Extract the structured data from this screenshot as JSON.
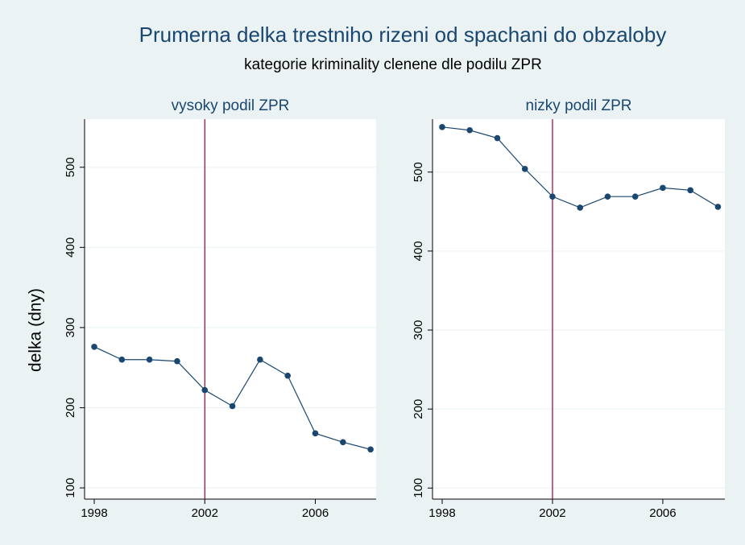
{
  "title": "Prumerna delka trestniho rizeni od spachani do obzaloby",
  "subtitle": "kategorie kriminality clenene dle podilu ZPR",
  "y_label": "delka (dny)",
  "chart_data": [
    {
      "type": "line",
      "title": "vysoky podil ZPR",
      "x": [
        1998,
        1999,
        2000,
        2001,
        2002,
        2003,
        2004,
        2005,
        2006,
        2007,
        2008
      ],
      "values": [
        276,
        260,
        260,
        258,
        222,
        202,
        260,
        240,
        168,
        157,
        148
      ],
      "color": "#1a476f",
      "xline": 2002,
      "xline_color": "#a0002a",
      "xlim": [
        1997.65,
        2008.2
      ],
      "ylim": [
        86,
        560
      ],
      "xticks": [
        1998,
        2002,
        2006
      ],
      "yticks": [
        100,
        200,
        300,
        400,
        500
      ],
      "grid": true
    },
    {
      "type": "line",
      "title": "nizky podil ZPR",
      "x": [
        1998,
        1999,
        2000,
        2001,
        2002,
        2003,
        2004,
        2005,
        2006,
        2007,
        2008
      ],
      "values": [
        557,
        553,
        543,
        504,
        469,
        455,
        469,
        469,
        480,
        477,
        456
      ],
      "color": "#1a476f",
      "xline": 2002,
      "xline_color": "#a0002a",
      "xlim": [
        1997.65,
        2008.25
      ],
      "ylim": [
        86,
        567
      ],
      "xticks": [
        1998,
        2002,
        2006
      ],
      "yticks": [
        100,
        200,
        300,
        400,
        500
      ],
      "grid": true
    }
  ]
}
